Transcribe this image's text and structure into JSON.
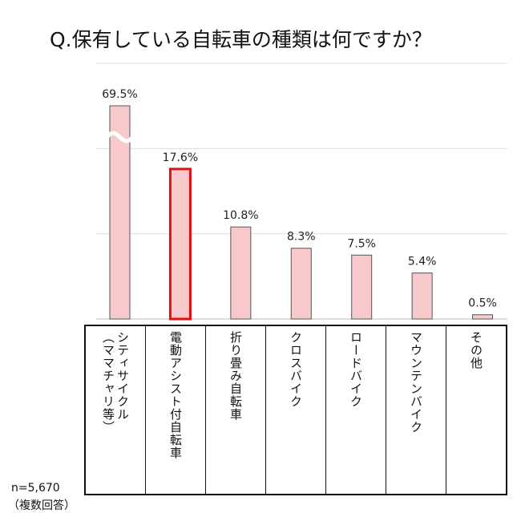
{
  "chart_data": {
    "type": "bar",
    "title": "Q.保有している自転車の種類は何ですか？",
    "categories": [
      "シティサイクル\n（ママチャリ等）",
      "電動アシスト付自転車",
      "折り畳み自転車",
      "クロスバイク",
      "ロードバイク",
      "マウンテンバイク",
      "その他"
    ],
    "values": [
      69.5,
      17.6,
      10.8,
      8.3,
      7.5,
      5.4,
      0.5
    ],
    "data_labels": [
      "69.5%",
      "17.6%",
      "10.8%",
      "8.3%",
      "7.5%",
      "5.4%",
      "0.5%"
    ],
    "ylim": [
      0,
      30
    ],
    "grid": true,
    "grid_step": 10,
    "broken_bars": [
      0
    ],
    "highlighted_bar": 1,
    "colors": {
      "bar_fill": "#f7c9ca",
      "bar_stroke": "#555555",
      "highlight_stroke": "#e01010",
      "grid": "#dddddd"
    }
  },
  "footnote": {
    "n": "n=5,670",
    "note": "（複数回答）"
  }
}
